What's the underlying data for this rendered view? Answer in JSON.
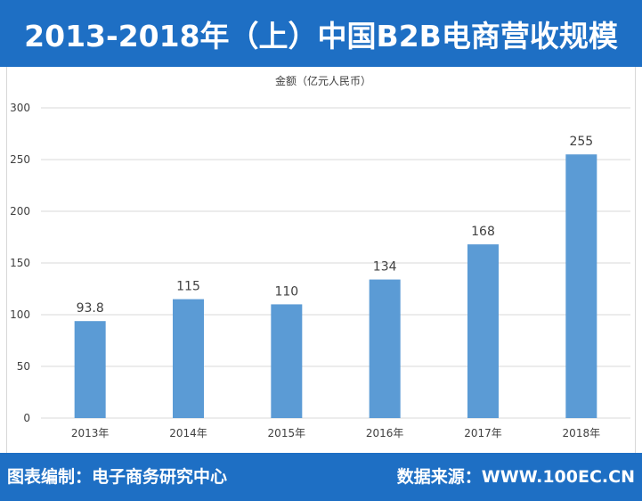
{
  "header": {
    "title": "2013-2018年（上）中国B2B电商营收规模"
  },
  "footer": {
    "left_text": "图表编制：电子商务研究中心",
    "right_text": "数据来源：WWW.100EC.CN"
  },
  "colors": {
    "banner": "#1e6fc4",
    "bar": "#5b9bd5",
    "grid": "#d9d9d9",
    "text": "#404040"
  },
  "chart_data": {
    "type": "bar",
    "title": "",
    "ylabel": "金额（亿元人民币）",
    "xlabel": "",
    "categories": [
      "2013年",
      "2014年",
      "2015年",
      "2016年",
      "2017年",
      "2018年"
    ],
    "values": [
      93.8,
      115,
      110,
      134,
      168,
      255
    ],
    "value_labels": [
      "93.8",
      "115",
      "110",
      "134",
      "168",
      "255"
    ],
    "ylim": [
      0,
      300
    ],
    "yticks": [
      0,
      50,
      100,
      150,
      200,
      250,
      300
    ],
    "grid": true,
    "legend": "none"
  }
}
